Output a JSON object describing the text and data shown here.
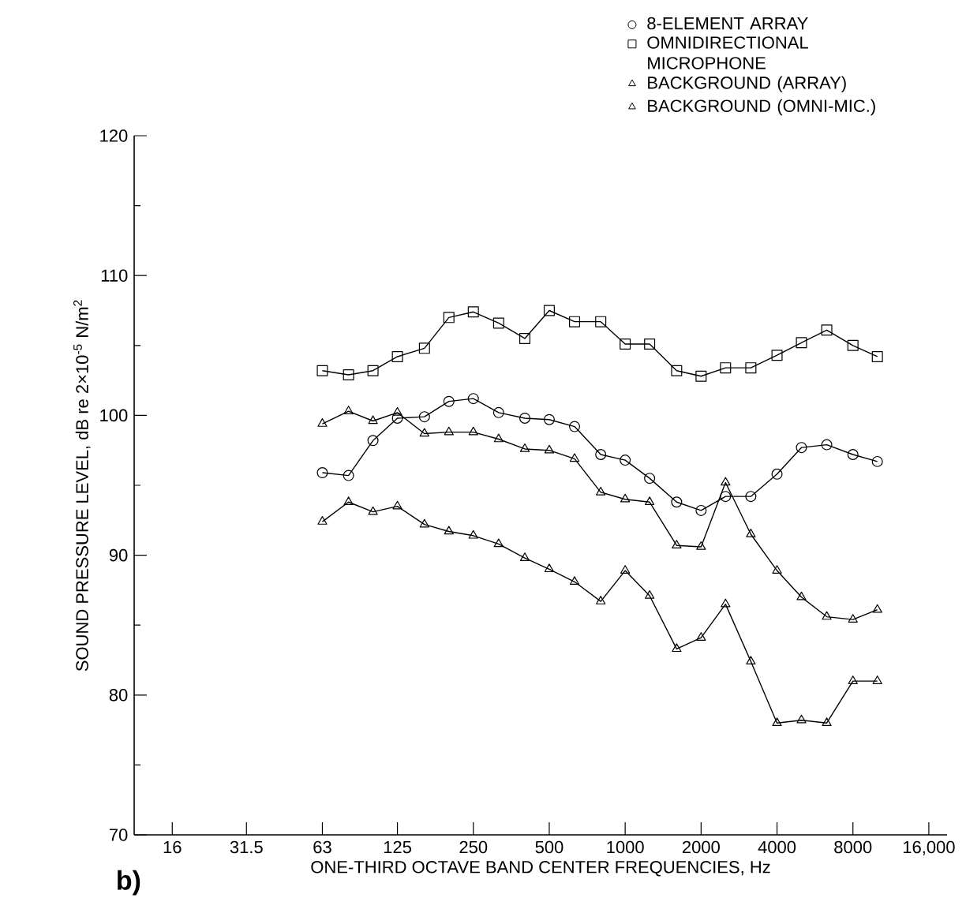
{
  "chart_data": {
    "type": "line",
    "xlabel": "ONE-THIRD OCTAVE BAND CENTER FREQUENCIES, Hz",
    "ylabel": "SOUND PRESSURE LEVEL, dB re 2×10$^{-5}$ N/m$^{2}$",
    "x": [
      63,
      80,
      100,
      125,
      160,
      200,
      250,
      315,
      400,
      500,
      630,
      800,
      1000,
      1250,
      1600,
      2000,
      2500,
      3150,
      4000,
      5000,
      6300,
      8000,
      10000
    ],
    "series": [
      {
        "name": "8-ELEMENT ARRAY",
        "color": "#000000",
        "marker": "circle",
        "values": [
          95.9,
          95.7,
          98.2,
          99.8,
          99.9,
          101.0,
          101.2,
          100.2,
          99.8,
          99.7,
          99.2,
          97.2,
          96.8,
          95.5,
          93.8,
          93.2,
          94.2,
          94.2,
          95.8,
          97.7,
          97.9,
          97.2,
          96.7
        ]
      },
      {
        "name": "OMNIDIRECTIONAL MICROPHONE",
        "color": "#000000",
        "marker": "square",
        "values": [
          103.2,
          102.9,
          103.2,
          104.2,
          104.8,
          107.0,
          107.4,
          106.6,
          105.5,
          107.5,
          106.7,
          106.7,
          105.1,
          105.1,
          103.2,
          102.8,
          103.4,
          103.4,
          104.3,
          105.2,
          106.1,
          105.0,
          104.2
        ]
      },
      {
        "name": "BACKGROUND (ARRAY)",
        "color": "#000000",
        "marker": "triangle",
        "values": [
          92.4,
          93.8,
          93.1,
          93.5,
          92.2,
          91.7,
          91.4,
          90.8,
          89.8,
          89.0,
          88.1,
          86.7,
          88.9,
          87.1,
          83.3,
          84.1,
          86.5,
          82.4,
          78.0,
          78.2,
          78.0,
          81.0,
          81.0
        ]
      },
      {
        "name": "BACKGROUND (OMNI-MIC.)",
        "color": "#000000",
        "marker": "triangle",
        "values": [
          99.4,
          100.3,
          99.6,
          100.2,
          98.7,
          98.8,
          98.8,
          98.3,
          97.6,
          97.5,
          96.9,
          94.5,
          94.0,
          93.8,
          90.7,
          90.6,
          95.2,
          91.5,
          88.9,
          87.0,
          85.6,
          85.4,
          86.1
        ]
      }
    ],
    "log": "x",
    "xlim": [
      11.3,
      18900
    ],
    "xticks": [
      16,
      31.5,
      63,
      125,
      250,
      500,
      1000,
      2000,
      4000,
      8000,
      {
        "value": 16000,
        "label": "16,000"
      }
    ],
    "ylim": [
      70,
      120
    ],
    "yticks": [
      70,
      80,
      90,
      100,
      110,
      120
    ],
    "grid": false,
    "legend": "top right",
    "line_style": "solid",
    "annotations": [
      "b)"
    ]
  }
}
